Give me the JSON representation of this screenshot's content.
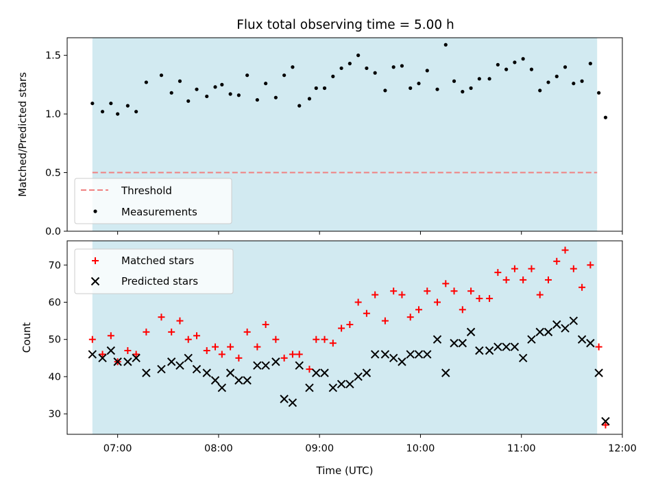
{
  "title": "Flux total observing time = 5.00 h",
  "colors": {
    "shade": "#add8e6",
    "threshold": "#f08080",
    "measure": "#000000",
    "matched": "#ff0000",
    "predicted": "#000000"
  },
  "chart_data": [
    {
      "type": "scatter",
      "id": "ratio",
      "ylabel": "Matched/Predicted stars",
      "xlim": [
        "06:30",
        "12:00"
      ],
      "ylim": [
        0,
        1.65
      ],
      "yticks": [
        "0.0",
        "0.5",
        "1.0",
        "1.5"
      ],
      "shaded_span": [
        "06:45",
        "11:45"
      ],
      "legend_position": "lower-left",
      "threshold": {
        "name": "Threshold",
        "value": 0.5,
        "style": "dashed"
      },
      "series": [
        {
          "name": "Measurements",
          "marker": "dot",
          "points": [
            [
              "06:45",
              1.09
            ],
            [
              "06:51",
              1.02
            ],
            [
              "06:56",
              1.09
            ],
            [
              "07:00",
              1.0
            ],
            [
              "07:06",
              1.07
            ],
            [
              "07:11",
              1.02
            ],
            [
              "07:17",
              1.27
            ],
            [
              "07:26",
              1.33
            ],
            [
              "07:32",
              1.18
            ],
            [
              "07:37",
              1.28
            ],
            [
              "07:42",
              1.11
            ],
            [
              "07:47",
              1.21
            ],
            [
              "07:53",
              1.15
            ],
            [
              "07:58",
              1.23
            ],
            [
              "08:02",
              1.25
            ],
            [
              "08:07",
              1.17
            ],
            [
              "08:12",
              1.16
            ],
            [
              "08:17",
              1.33
            ],
            [
              "08:23",
              1.12
            ],
            [
              "08:28",
              1.26
            ],
            [
              "08:34",
              1.14
            ],
            [
              "08:39",
              1.33
            ],
            [
              "08:44",
              1.4
            ],
            [
              "08:48",
              1.07
            ],
            [
              "08:54",
              1.13
            ],
            [
              "08:58",
              1.22
            ],
            [
              "09:03",
              1.22
            ],
            [
              "09:08",
              1.32
            ],
            [
              "09:13",
              1.39
            ],
            [
              "09:18",
              1.43
            ],
            [
              "09:23",
              1.5
            ],
            [
              "09:28",
              1.39
            ],
            [
              "09:33",
              1.35
            ],
            [
              "09:39",
              1.2
            ],
            [
              "09:44",
              1.4
            ],
            [
              "09:49",
              1.41
            ],
            [
              "09:54",
              1.22
            ],
            [
              "09:59",
              1.26
            ],
            [
              "10:04",
              1.37
            ],
            [
              "10:10",
              1.21
            ],
            [
              "10:15",
              1.59
            ],
            [
              "10:20",
              1.28
            ],
            [
              "10:25",
              1.19
            ],
            [
              "10:30",
              1.22
            ],
            [
              "10:35",
              1.3
            ],
            [
              "10:41",
              1.3
            ],
            [
              "10:46",
              1.42
            ],
            [
              "10:51",
              1.38
            ],
            [
              "10:56",
              1.44
            ],
            [
              "11:01",
              1.47
            ],
            [
              "11:06",
              1.38
            ],
            [
              "11:11",
              1.2
            ],
            [
              "11:16",
              1.27
            ],
            [
              "11:21",
              1.32
            ],
            [
              "11:26",
              1.4
            ],
            [
              "11:31",
              1.26
            ],
            [
              "11:36",
              1.28
            ],
            [
              "11:41",
              1.43
            ],
            [
              "11:46",
              1.18
            ],
            [
              "11:50",
              0.97
            ]
          ]
        }
      ]
    },
    {
      "type": "scatter",
      "id": "counts",
      "xlabel": "Time (UTC)",
      "ylabel": "Count",
      "xlim": [
        "06:30",
        "12:00"
      ],
      "xticks": [
        "07:00",
        "08:00",
        "09:00",
        "10:00",
        "11:00",
        "12:00"
      ],
      "ylim": [
        24.5,
        76.5
      ],
      "yticks": [
        "30",
        "40",
        "50",
        "60",
        "70"
      ],
      "shaded_span": [
        "06:45",
        "11:45"
      ],
      "legend_position": "upper-left",
      "series": [
        {
          "name": "Matched stars",
          "marker": "plus",
          "points": [
            [
              "06:45",
              50
            ],
            [
              "06:51",
              46
            ],
            [
              "06:56",
              51
            ],
            [
              "07:00",
              44
            ],
            [
              "07:06",
              47
            ],
            [
              "07:11",
              46
            ],
            [
              "07:17",
              52
            ],
            [
              "07:26",
              56
            ],
            [
              "07:32",
              52
            ],
            [
              "07:37",
              55
            ],
            [
              "07:42",
              50
            ],
            [
              "07:47",
              51
            ],
            [
              "07:53",
              47
            ],
            [
              "07:58",
              48
            ],
            [
              "08:02",
              46
            ],
            [
              "08:07",
              48
            ],
            [
              "08:12",
              45
            ],
            [
              "08:17",
              52
            ],
            [
              "08:23",
              48
            ],
            [
              "08:28",
              54
            ],
            [
              "08:34",
              50
            ],
            [
              "08:39",
              45
            ],
            [
              "08:44",
              46
            ],
            [
              "08:48",
              46
            ],
            [
              "08:54",
              42
            ],
            [
              "08:58",
              50
            ],
            [
              "09:03",
              50
            ],
            [
              "09:08",
              49
            ],
            [
              "09:13",
              53
            ],
            [
              "09:18",
              54
            ],
            [
              "09:23",
              60
            ],
            [
              "09:28",
              57
            ],
            [
              "09:33",
              62
            ],
            [
              "09:39",
              55
            ],
            [
              "09:44",
              63
            ],
            [
              "09:49",
              62
            ],
            [
              "09:54",
              56
            ],
            [
              "09:59",
              58
            ],
            [
              "10:04",
              63
            ],
            [
              "10:10",
              60
            ],
            [
              "10:15",
              65
            ],
            [
              "10:20",
              63
            ],
            [
              "10:25",
              58
            ],
            [
              "10:30",
              63
            ],
            [
              "10:35",
              61
            ],
            [
              "10:41",
              61
            ],
            [
              "10:46",
              68
            ],
            [
              "10:51",
              66
            ],
            [
              "10:56",
              69
            ],
            [
              "11:01",
              66
            ],
            [
              "11:06",
              69
            ],
            [
              "11:11",
              62
            ],
            [
              "11:16",
              66
            ],
            [
              "11:21",
              71
            ],
            [
              "11:26",
              74
            ],
            [
              "11:31",
              69
            ],
            [
              "11:36",
              64
            ],
            [
              "11:41",
              70
            ],
            [
              "11:46",
              48
            ],
            [
              "11:50",
              27
            ]
          ]
        },
        {
          "name": "Predicted stars",
          "marker": "x",
          "points": [
            [
              "06:45",
              46
            ],
            [
              "06:51",
              45
            ],
            [
              "06:56",
              47
            ],
            [
              "07:00",
              44
            ],
            [
              "07:06",
              44
            ],
            [
              "07:11",
              45
            ],
            [
              "07:17",
              41
            ],
            [
              "07:26",
              42
            ],
            [
              "07:32",
              44
            ],
            [
              "07:37",
              43
            ],
            [
              "07:42",
              45
            ],
            [
              "07:47",
              42
            ],
            [
              "07:53",
              41
            ],
            [
              "07:58",
              39
            ],
            [
              "08:02",
              37
            ],
            [
              "08:07",
              41
            ],
            [
              "08:12",
              39
            ],
            [
              "08:17",
              39
            ],
            [
              "08:23",
              43
            ],
            [
              "08:28",
              43
            ],
            [
              "08:34",
              44
            ],
            [
              "08:39",
              34
            ],
            [
              "08:44",
              33
            ],
            [
              "08:48",
              43
            ],
            [
              "08:54",
              37
            ],
            [
              "08:58",
              41
            ],
            [
              "09:03",
              41
            ],
            [
              "09:08",
              37
            ],
            [
              "09:13",
              38
            ],
            [
              "09:18",
              38
            ],
            [
              "09:23",
              40
            ],
            [
              "09:28",
              41
            ],
            [
              "09:33",
              46
            ],
            [
              "09:39",
              46
            ],
            [
              "09:44",
              45
            ],
            [
              "09:49",
              44
            ],
            [
              "09:54",
              46
            ],
            [
              "09:59",
              46
            ],
            [
              "10:04",
              46
            ],
            [
              "10:10",
              50
            ],
            [
              "10:15",
              41
            ],
            [
              "10:20",
              49
            ],
            [
              "10:25",
              49
            ],
            [
              "10:30",
              52
            ],
            [
              "10:35",
              47
            ],
            [
              "10:41",
              47
            ],
            [
              "10:46",
              48
            ],
            [
              "10:51",
              48
            ],
            [
              "10:56",
              48
            ],
            [
              "11:01",
              45
            ],
            [
              "11:06",
              50
            ],
            [
              "11:11",
              52
            ],
            [
              "11:16",
              52
            ],
            [
              "11:21",
              54
            ],
            [
              "11:26",
              53
            ],
            [
              "11:31",
              55
            ],
            [
              "11:36",
              50
            ],
            [
              "11:41",
              49
            ],
            [
              "11:46",
              41
            ],
            [
              "11:50",
              28
            ]
          ]
        }
      ]
    }
  ]
}
